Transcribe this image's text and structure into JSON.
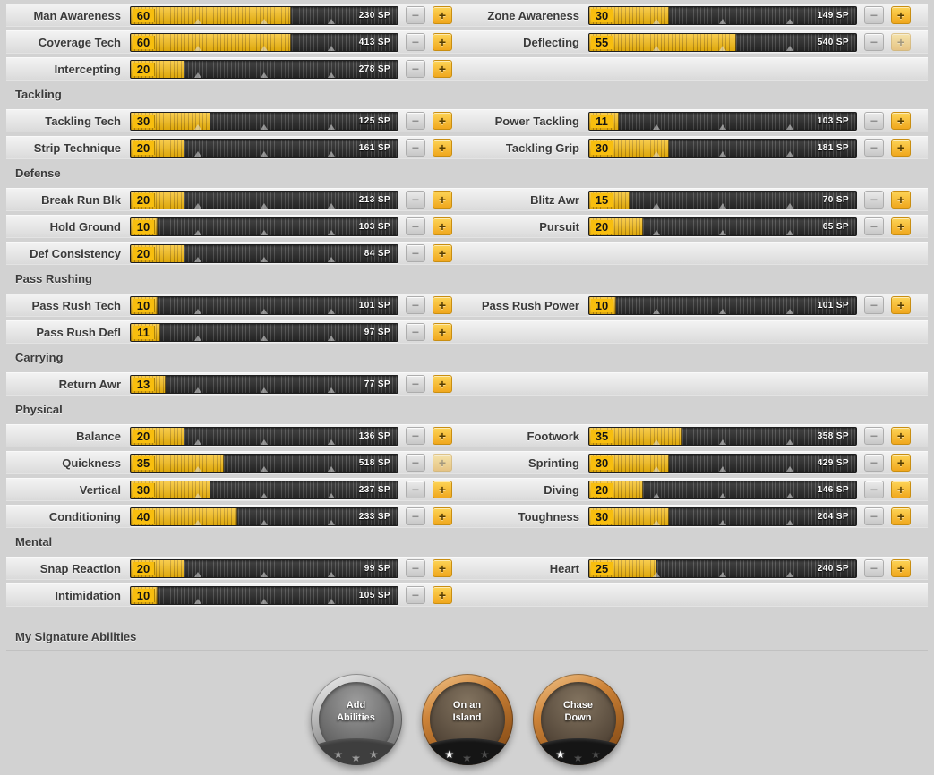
{
  "colors": {
    "accent_yellow": "#f6ba0c",
    "bar_background": "#2f2f2f",
    "bar_fill": "#f0ad00",
    "value_box": "#f8be0e",
    "sp_text": "#ffffff",
    "page_background": "#d2d2d2",
    "bronze_badge": "#9c5c1f",
    "gray_badge": "#8e8e8e"
  },
  "controls": {
    "minus_label": "−",
    "plus_label": "+",
    "star_icon": "★"
  },
  "bar_markers": [
    25,
    50,
    75
  ],
  "bar_max": 100,
  "sections": [
    {
      "title": "",
      "rows": [
        {
          "left": {
            "label": "Man Awareness",
            "value": 60,
            "sp": "230 SP",
            "minus_enabled": false,
            "plus_enabled": true
          },
          "right": {
            "label": "Zone Awareness",
            "value": 30,
            "sp": "149 SP",
            "minus_enabled": false,
            "plus_enabled": true
          }
        },
        {
          "left": {
            "label": "Coverage Tech",
            "value": 60,
            "sp": "413 SP",
            "minus_enabled": false,
            "plus_enabled": true
          },
          "right": {
            "label": "Deflecting",
            "value": 55,
            "sp": "540 SP",
            "minus_enabled": false,
            "plus_enabled": false
          }
        },
        {
          "left": {
            "label": "Intercepting",
            "value": 20,
            "sp": "278 SP",
            "minus_enabled": false,
            "plus_enabled": true
          },
          "right": null
        }
      ]
    },
    {
      "title": "Tackling",
      "rows": [
        {
          "left": {
            "label": "Tackling Tech",
            "value": 30,
            "sp": "125 SP",
            "minus_enabled": false,
            "plus_enabled": true
          },
          "right": {
            "label": "Power Tackling",
            "value": 11,
            "sp": "103 SP",
            "minus_enabled": false,
            "plus_enabled": true
          }
        },
        {
          "left": {
            "label": "Strip Technique",
            "value": 20,
            "sp": "161 SP",
            "minus_enabled": false,
            "plus_enabled": true
          },
          "right": {
            "label": "Tackling Grip",
            "value": 30,
            "sp": "181 SP",
            "minus_enabled": false,
            "plus_enabled": true
          }
        }
      ]
    },
    {
      "title": "Defense",
      "rows": [
        {
          "left": {
            "label": "Break Run Blk",
            "value": 20,
            "sp": "213 SP",
            "minus_enabled": false,
            "plus_enabled": true
          },
          "right": {
            "label": "Blitz Awr",
            "value": 15,
            "sp": "70 SP",
            "minus_enabled": false,
            "plus_enabled": true
          }
        },
        {
          "left": {
            "label": "Hold Ground",
            "value": 10,
            "sp": "103 SP",
            "minus_enabled": false,
            "plus_enabled": true
          },
          "right": {
            "label": "Pursuit",
            "value": 20,
            "sp": "65 SP",
            "minus_enabled": false,
            "plus_enabled": true
          }
        },
        {
          "left": {
            "label": "Def Consistency",
            "value": 20,
            "sp": "84 SP",
            "minus_enabled": false,
            "plus_enabled": true
          },
          "right": null
        }
      ]
    },
    {
      "title": "Pass Rushing",
      "rows": [
        {
          "left": {
            "label": "Pass Rush Tech",
            "value": 10,
            "sp": "101 SP",
            "minus_enabled": false,
            "plus_enabled": true
          },
          "right": {
            "label": "Pass Rush Power",
            "value": 10,
            "sp": "101 SP",
            "minus_enabled": false,
            "plus_enabled": true
          }
        },
        {
          "left": {
            "label": "Pass Rush Defl",
            "value": 11,
            "sp": "97 SP",
            "minus_enabled": false,
            "plus_enabled": true
          },
          "right": null
        }
      ]
    },
    {
      "title": "Carrying",
      "rows": [
        {
          "left": {
            "label": "Return Awr",
            "value": 13,
            "sp": "77 SP",
            "minus_enabled": false,
            "plus_enabled": true
          },
          "right": null
        }
      ]
    },
    {
      "title": "Physical",
      "rows": [
        {
          "left": {
            "label": "Balance",
            "value": 20,
            "sp": "136 SP",
            "minus_enabled": false,
            "plus_enabled": true
          },
          "right": {
            "label": "Footwork",
            "value": 35,
            "sp": "358 SP",
            "minus_enabled": false,
            "plus_enabled": true
          }
        },
        {
          "left": {
            "label": "Quickness",
            "value": 35,
            "sp": "518 SP",
            "minus_enabled": false,
            "plus_enabled": false
          },
          "right": {
            "label": "Sprinting",
            "value": 30,
            "sp": "429 SP",
            "minus_enabled": false,
            "plus_enabled": true
          }
        },
        {
          "left": {
            "label": "Vertical",
            "value": 30,
            "sp": "237 SP",
            "minus_enabled": false,
            "plus_enabled": true
          },
          "right": {
            "label": "Diving",
            "value": 20,
            "sp": "146 SP",
            "minus_enabled": false,
            "plus_enabled": true
          }
        },
        {
          "left": {
            "label": "Conditioning",
            "value": 40,
            "sp": "233 SP",
            "minus_enabled": false,
            "plus_enabled": true
          },
          "right": {
            "label": "Toughness",
            "value": 30,
            "sp": "204 SP",
            "minus_enabled": false,
            "plus_enabled": true
          }
        }
      ]
    },
    {
      "title": "Mental",
      "rows": [
        {
          "left": {
            "label": "Snap Reaction",
            "value": 20,
            "sp": "99 SP",
            "minus_enabled": false,
            "plus_enabled": true
          },
          "right": {
            "label": "Heart",
            "value": 25,
            "sp": "240 SP",
            "minus_enabled": false,
            "plus_enabled": true
          }
        },
        {
          "left": {
            "label": "Intimidation",
            "value": 10,
            "sp": "105 SP",
            "minus_enabled": false,
            "plus_enabled": true
          },
          "right": null
        }
      ]
    }
  ],
  "signature": {
    "title": "My Signature Abilities",
    "badges": [
      {
        "label": "Add Abilities",
        "style": "gray",
        "stars_filled": 0,
        "stars_total": 3
      },
      {
        "label": "On an Island",
        "style": "bronze",
        "stars_filled": 1,
        "stars_total": 3
      },
      {
        "label": "Chase Down",
        "style": "bronze",
        "stars_filled": 1,
        "stars_total": 3
      }
    ]
  }
}
